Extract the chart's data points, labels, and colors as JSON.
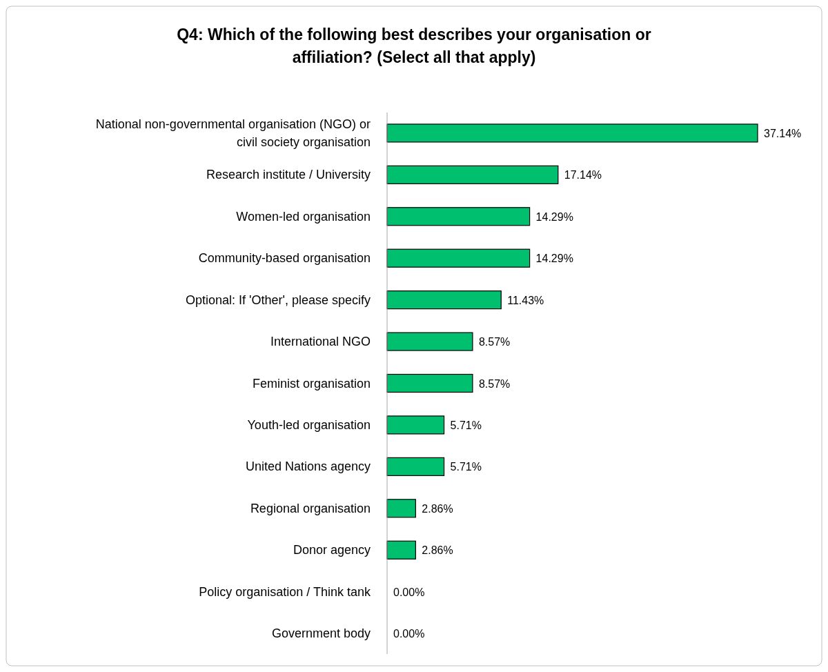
{
  "chart_data": {
    "type": "bar",
    "orientation": "horizontal",
    "title": "Q4: Which of the following best describes your organisation or affiliation? (Select all that apply)",
    "categories": [
      "National non-governmental organisation (NGO) or civil society organisation",
      "Research institute / University",
      "Women-led organisation",
      "Community-based organisation",
      "Optional: If 'Other', please specify",
      "International NGO",
      "Feminist organisation",
      "Youth-led organisation",
      "United Nations agency",
      "Regional organisation",
      "Donor agency",
      "Policy organisation / Think tank",
      "Government body"
    ],
    "values": [
      37.14,
      17.14,
      14.29,
      14.29,
      11.43,
      8.57,
      8.57,
      5.71,
      5.71,
      2.86,
      2.86,
      0,
      0
    ],
    "value_labels": [
      "37.14%",
      "17.14%",
      "14.29%",
      "14.29%",
      "11.43%",
      "8.57%",
      "8.57%",
      "5.71%",
      "5.71%",
      "2.86%",
      "2.86%",
      "0.00%",
      "0.00%"
    ],
    "color": "#00bf6f"
  }
}
